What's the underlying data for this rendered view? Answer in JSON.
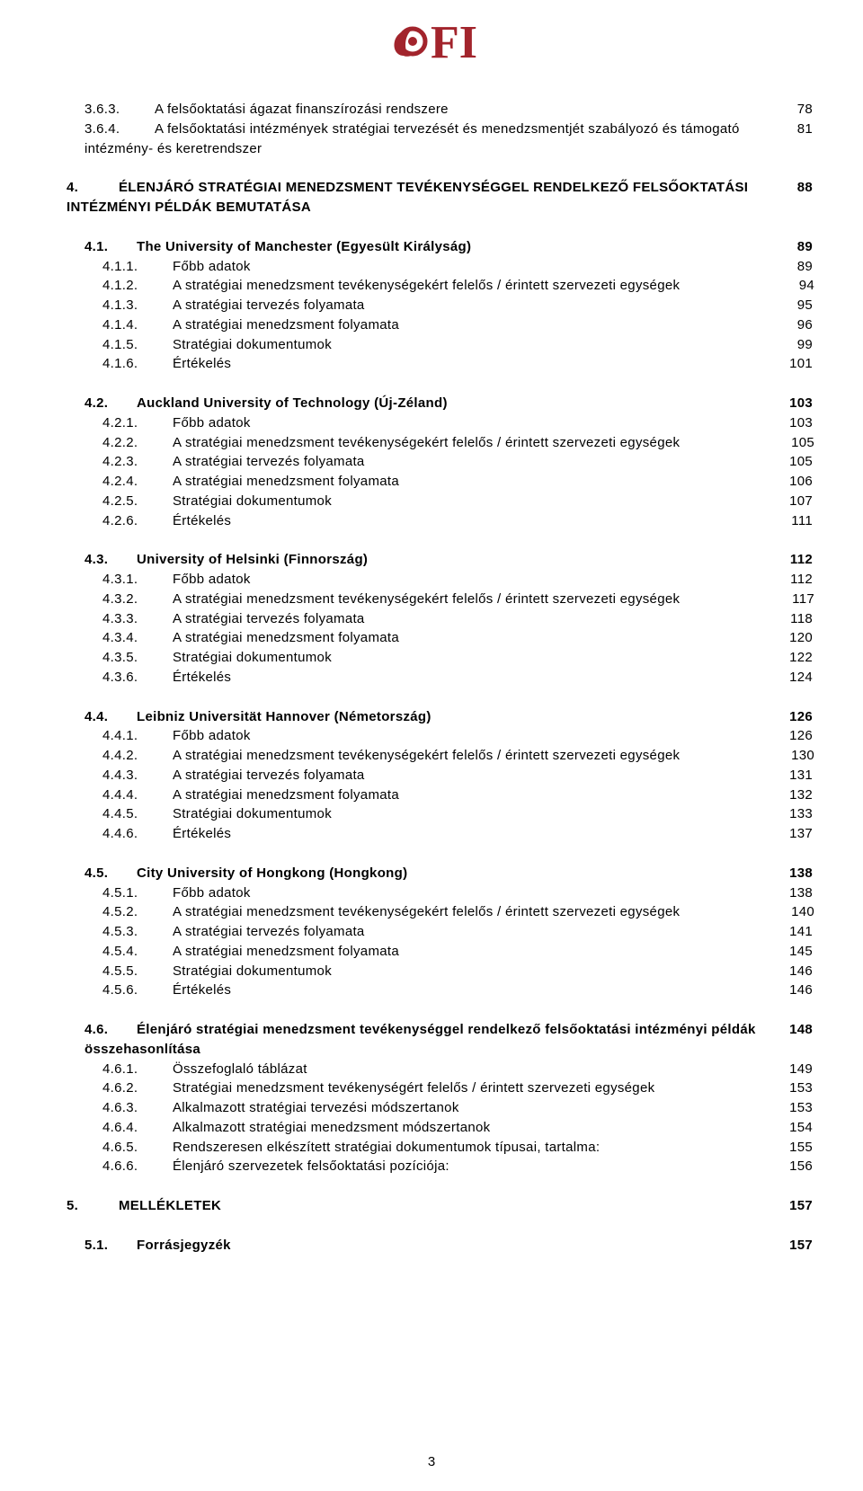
{
  "logo": {
    "bg_color": "#ffffff",
    "accent_color": "#a2242c",
    "text_color": "#a2242c",
    "letters": "FI"
  },
  "page_number": "3",
  "toc": [
    {
      "type": "group",
      "cls": "block",
      "rows": [
        {
          "num": "3.6.3.",
          "title": "A felsőoktatási ágazat finanszírozási rendszere",
          "page": "78",
          "cls": "lvl-b"
        },
        {
          "num": "3.6.4.",
          "title": "A felsőoktatási intézmények stratégiai tervezését és menedzsmentjét szabályozó és támogató intézmény- és keretrendszer",
          "page": "81",
          "cls": "lvl-b"
        }
      ]
    },
    {
      "type": "group",
      "cls": "block",
      "rows": [
        {
          "num": "4.",
          "title": "ÉLENJÁRÓ STRATÉGIAI MENEDZSMENT TEVÉKENYSÉGGEL RENDELKEZŐ FELSŐOKTATÁSI INTÉZMÉNYI PÉLDÁK BEMUTATÁSA",
          "page": "88",
          "cls": "lvl-special bold"
        }
      ]
    },
    {
      "type": "group",
      "cls": "block",
      "rows": [
        {
          "num": "4.1.",
          "title": "The University of Manchester (Egyesült Királyság)",
          "page": "89",
          "cls": "lvl-b bold"
        },
        {
          "num": "4.1.1.",
          "title": "Főbb adatok",
          "page": "89",
          "cls": "lvl-c"
        },
        {
          "num": "4.1.2.",
          "title": "A stratégiai menedzsment tevékenységekért felelős / érintett szervezeti egységek",
          "page": "94",
          "cls": "lvl-c tight"
        },
        {
          "num": "4.1.3.",
          "title": "A stratégiai tervezés folyamata",
          "page": "95",
          "cls": "lvl-c"
        },
        {
          "num": "4.1.4.",
          "title": "A stratégiai menedzsment folyamata",
          "page": "96",
          "cls": "lvl-c"
        },
        {
          "num": "4.1.5.",
          "title": "Stratégiai dokumentumok",
          "page": "99",
          "cls": "lvl-c"
        },
        {
          "num": "4.1.6.",
          "title": "Értékelés",
          "page": "101",
          "cls": "lvl-c"
        }
      ]
    },
    {
      "type": "group",
      "cls": "block",
      "rows": [
        {
          "num": "4.2.",
          "title": "Auckland University of Technology (Új-Zéland)",
          "page": "103",
          "cls": "lvl-b bold"
        },
        {
          "num": "4.2.1.",
          "title": "Főbb adatok",
          "page": "103",
          "cls": "lvl-c"
        },
        {
          "num": "4.2.2.",
          "title": "A stratégiai menedzsment tevékenységekért felelős / érintett szervezeti egységek",
          "page": "105",
          "cls": "lvl-c tight"
        },
        {
          "num": "4.2.3.",
          "title": "A stratégiai tervezés folyamata",
          "page": "105",
          "cls": "lvl-c"
        },
        {
          "num": "4.2.4.",
          "title": "A stratégiai menedzsment folyamata",
          "page": "106",
          "cls": "lvl-c"
        },
        {
          "num": "4.2.5.",
          "title": "Stratégiai dokumentumok",
          "page": "107",
          "cls": "lvl-c"
        },
        {
          "num": "4.2.6.",
          "title": "Értékelés",
          "page": "111",
          "cls": "lvl-c"
        }
      ]
    },
    {
      "type": "group",
      "cls": "block",
      "rows": [
        {
          "num": "4.3.",
          "title": "University of Helsinki (Finnország)",
          "page": "112",
          "cls": "lvl-b bold"
        },
        {
          "num": "4.3.1.",
          "title": "Főbb adatok",
          "page": "112",
          "cls": "lvl-c"
        },
        {
          "num": "4.3.2.",
          "title": "A stratégiai menedzsment tevékenységekért felelős / érintett szervezeti egységek",
          "page": "117",
          "cls": "lvl-c tight"
        },
        {
          "num": "4.3.3.",
          "title": "A stratégiai tervezés folyamata",
          "page": "118",
          "cls": "lvl-c"
        },
        {
          "num": "4.3.4.",
          "title": "A stratégiai menedzsment folyamata",
          "page": "120",
          "cls": "lvl-c"
        },
        {
          "num": "4.3.5.",
          "title": "Stratégiai dokumentumok",
          "page": "122",
          "cls": "lvl-c"
        },
        {
          "num": "4.3.6.",
          "title": "Értékelés",
          "page": "124",
          "cls": "lvl-c"
        }
      ]
    },
    {
      "type": "group",
      "cls": "block",
      "rows": [
        {
          "num": "4.4.",
          "title": "Leibniz Universität Hannover (Németország)",
          "page": "126",
          "cls": "lvl-b bold"
        },
        {
          "num": "4.4.1.",
          "title": "Főbb adatok",
          "page": "126",
          "cls": "lvl-c"
        },
        {
          "num": "4.4.2.",
          "title": "A stratégiai menedzsment tevékenységekért felelős / érintett szervezeti egységek",
          "page": "130",
          "cls": "lvl-c tight"
        },
        {
          "num": "4.4.3.",
          "title": "A stratégiai tervezés folyamata",
          "page": "131",
          "cls": "lvl-c"
        },
        {
          "num": "4.4.4.",
          "title": "A stratégiai menedzsment folyamata",
          "page": "132",
          "cls": "lvl-c"
        },
        {
          "num": "4.4.5.",
          "title": "Stratégiai dokumentumok",
          "page": "133",
          "cls": "lvl-c"
        },
        {
          "num": "4.4.6.",
          "title": "Értékelés",
          "page": "137",
          "cls": "lvl-c"
        }
      ]
    },
    {
      "type": "group",
      "cls": "block",
      "rows": [
        {
          "num": "4.5.",
          "title": "City University of Hongkong (Hongkong)",
          "page": "138",
          "cls": "lvl-b bold"
        },
        {
          "num": "4.5.1.",
          "title": "Főbb adatok",
          "page": "138",
          "cls": "lvl-c"
        },
        {
          "num": "4.5.2.",
          "title": "A stratégiai menedzsment tevékenységekért felelős / érintett szervezeti egységek",
          "page": "140",
          "cls": "lvl-c tight"
        },
        {
          "num": "4.5.3.",
          "title": "A stratégiai tervezés folyamata",
          "page": "141",
          "cls": "lvl-c"
        },
        {
          "num": "4.5.4.",
          "title": "A stratégiai menedzsment folyamata",
          "page": "145",
          "cls": "lvl-c"
        },
        {
          "num": "4.5.5.",
          "title": "Stratégiai dokumentumok",
          "page": "146",
          "cls": "lvl-c"
        },
        {
          "num": "4.5.6.",
          "title": "Értékelés",
          "page": "146",
          "cls": "lvl-c"
        }
      ]
    },
    {
      "type": "group",
      "cls": "block",
      "rows": [
        {
          "num": "4.6.",
          "title": "Élenjáró stratégiai menedzsment tevékenységgel rendelkező felsőoktatási intézményi példák összehasonlítása",
          "page": "148",
          "cls": "lvl-b bold"
        },
        {
          "num": "4.6.1.",
          "title": "Összefoglaló táblázat",
          "page": "149",
          "cls": "lvl-c"
        },
        {
          "num": "4.6.2.",
          "title": "Stratégiai menedzsment tevékenységért felelős / érintett szervezeti egységek",
          "page": "153",
          "cls": "lvl-c"
        },
        {
          "num": "4.6.3.",
          "title": "Alkalmazott stratégiai tervezési módszertanok",
          "page": "153",
          "cls": "lvl-c"
        },
        {
          "num": "4.6.4.",
          "title": "Alkalmazott stratégiai menedzsment módszertanok",
          "page": "154",
          "cls": "lvl-c"
        },
        {
          "num": "4.6.5.",
          "title": "Rendszeresen elkészített stratégiai dokumentumok típusai, tartalma:",
          "page": "155",
          "cls": "lvl-c"
        },
        {
          "num": "4.6.6.",
          "title": "Élenjáró szervezetek felsőoktatási pozíciója:",
          "page": "156",
          "cls": "lvl-c"
        }
      ]
    },
    {
      "type": "group",
      "cls": "block",
      "rows": [
        {
          "num": "5.",
          "title": "MELLÉKLETEK",
          "page": "157",
          "cls": "lvl-a bold"
        }
      ]
    },
    {
      "type": "group",
      "cls": "block",
      "rows": [
        {
          "num": "5.1.",
          "title": "Forrásjegyzék",
          "page": "157",
          "cls": "lvl-b bold"
        }
      ]
    }
  ]
}
